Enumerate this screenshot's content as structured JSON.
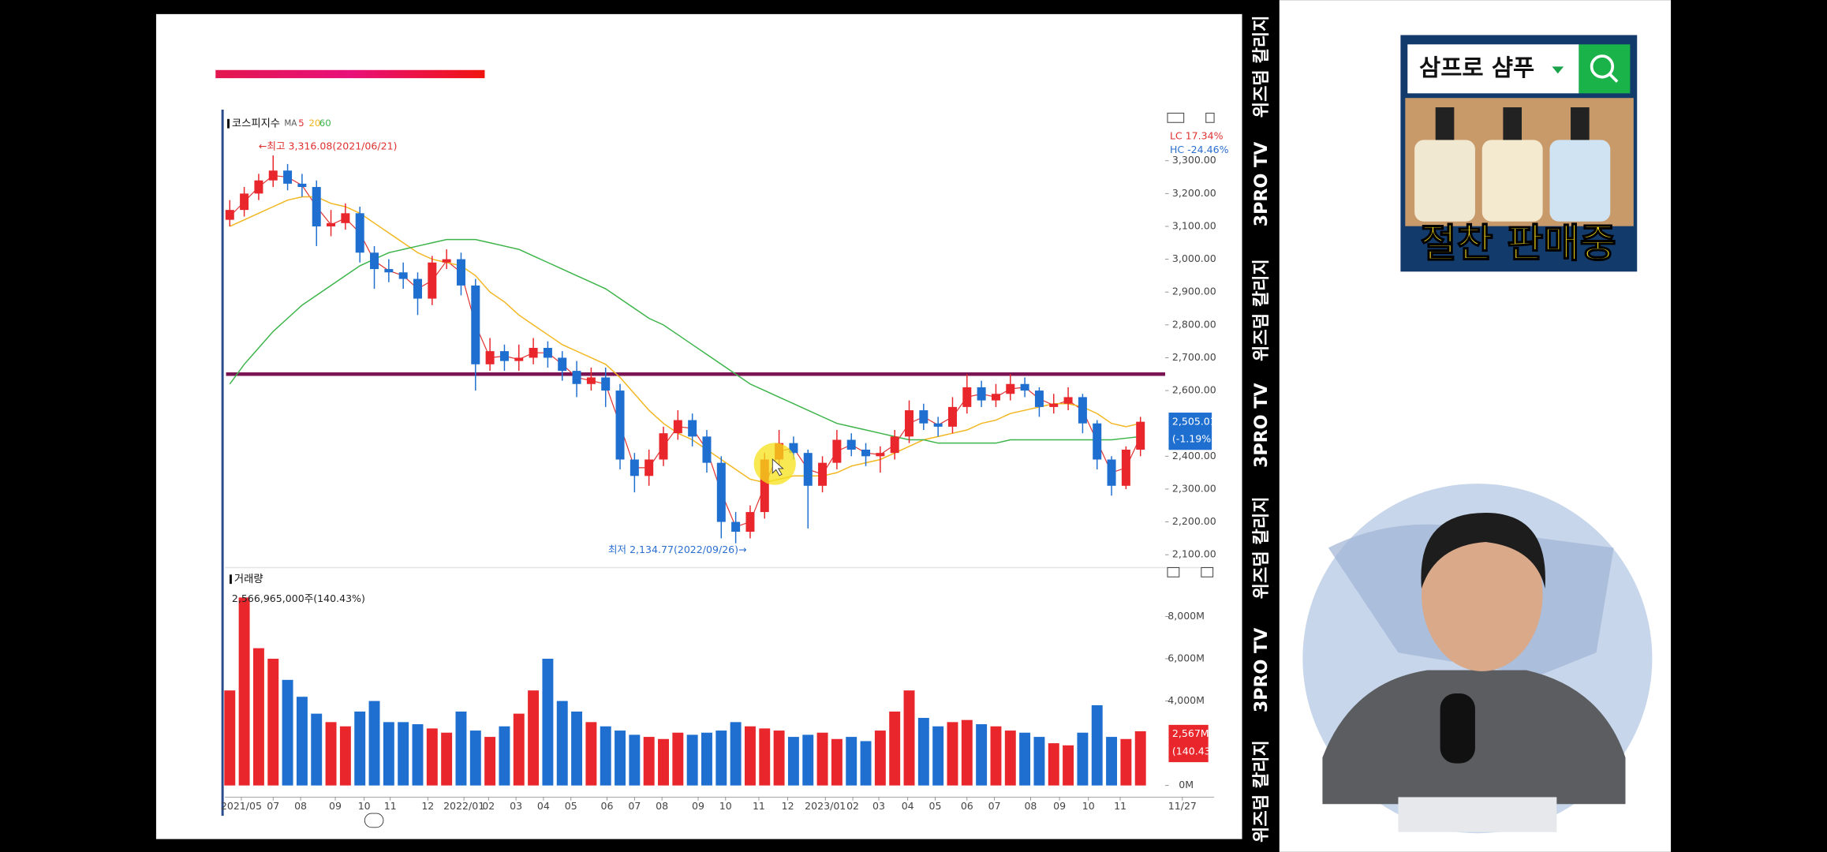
{
  "chart_data": {
    "type": "candlestick",
    "title": "코스피지수",
    "ma_label": "MA",
    "up_color": "#e8262b",
    "down_color": "#1e6fd0",
    "ohlc": [
      [
        3120,
        3180,
        3100,
        3150
      ],
      [
        3150,
        3220,
        3130,
        3200
      ],
      [
        3200,
        3260,
        3180,
        3240
      ],
      [
        3240,
        3316.08,
        3220,
        3270
      ],
      [
        3270,
        3290,
        3210,
        3230
      ],
      [
        3230,
        3260,
        3190,
        3220
      ],
      [
        3220,
        3240,
        3040,
        3100
      ],
      [
        3100,
        3150,
        3070,
        3110
      ],
      [
        3110,
        3170,
        3090,
        3140
      ],
      [
        3140,
        3160,
        2990,
        3020
      ],
      [
        3020,
        3040,
        2910,
        2970
      ],
      [
        2970,
        3000,
        2930,
        2960
      ],
      [
        2960,
        2990,
        2910,
        2940
      ],
      [
        2940,
        2960,
        2830,
        2880
      ],
      [
        2880,
        3010,
        2860,
        2990
      ],
      [
        2990,
        3030,
        2970,
        3000
      ],
      [
        3000,
        3020,
        2890,
        2920
      ],
      [
        2920,
        2940,
        2600,
        2680
      ],
      [
        2680,
        2760,
        2660,
        2720
      ],
      [
        2720,
        2740,
        2660,
        2690
      ],
      [
        2690,
        2740,
        2660,
        2700
      ],
      [
        2700,
        2760,
        2680,
        2730
      ],
      [
        2730,
        2750,
        2670,
        2700
      ],
      [
        2700,
        2720,
        2630,
        2660
      ],
      [
        2660,
        2690,
        2580,
        2620
      ],
      [
        2620,
        2670,
        2600,
        2640
      ],
      [
        2640,
        2670,
        2550,
        2600
      ],
      [
        2600,
        2620,
        2360,
        2390
      ],
      [
        2390,
        2410,
        2290,
        2340
      ],
      [
        2340,
        2420,
        2310,
        2390
      ],
      [
        2390,
        2490,
        2370,
        2470
      ],
      [
        2470,
        2540,
        2450,
        2510
      ],
      [
        2510,
        2530,
        2430,
        2460
      ],
      [
        2460,
        2480,
        2350,
        2380
      ],
      [
        2380,
        2400,
        2150,
        2200
      ],
      [
        2200,
        2230,
        2134.77,
        2170
      ],
      [
        2170,
        2250,
        2150,
        2230
      ],
      [
        2230,
        2410,
        2210,
        2390
      ],
      [
        2390,
        2480,
        2370,
        2440
      ],
      [
        2440,
        2460,
        2390,
        2410
      ],
      [
        2410,
        2420,
        2180,
        2310
      ],
      [
        2310,
        2400,
        2290,
        2380
      ],
      [
        2380,
        2480,
        2360,
        2450
      ],
      [
        2450,
        2470,
        2400,
        2420
      ],
      [
        2420,
        2440,
        2370,
        2400
      ],
      [
        2400,
        2430,
        2350,
        2410
      ],
      [
        2410,
        2480,
        2390,
        2460
      ],
      [
        2460,
        2570,
        2440,
        2540
      ],
      [
        2540,
        2560,
        2480,
        2500
      ],
      [
        2500,
        2520,
        2460,
        2490
      ],
      [
        2490,
        2580,
        2470,
        2550
      ],
      [
        2550,
        2650,
        2530,
        2610
      ],
      [
        2610,
        2630,
        2550,
        2570
      ],
      [
        2570,
        2620,
        2550,
        2590
      ],
      [
        2590,
        2650,
        2570,
        2620
      ],
      [
        2620,
        2640,
        2580,
        2600
      ],
      [
        2600,
        2610,
        2520,
        2550
      ],
      [
        2550,
        2590,
        2530,
        2560
      ],
      [
        2560,
        2610,
        2540,
        2580
      ],
      [
        2580,
        2590,
        2470,
        2500
      ],
      [
        2500,
        2510,
        2360,
        2390
      ],
      [
        2390,
        2400,
        2280,
        2310
      ],
      [
        2310,
        2430,
        2300,
        2420
      ],
      [
        2420,
        2520,
        2400,
        2505.01
      ]
    ],
    "series": [
      {
        "name": "5",
        "color": "#e03030",
        "values": [
          3130,
          3175,
          3220,
          3255,
          3250,
          3225,
          3160,
          3105,
          3125,
          3080,
          2995,
          2965,
          2950,
          2910,
          2935,
          2995,
          2960,
          2800,
          2700,
          2705,
          2695,
          2715,
          2715,
          2680,
          2640,
          2630,
          2620,
          2495,
          2365,
          2365,
          2430,
          2490,
          2485,
          2420,
          2290,
          2185,
          2200,
          2310,
          2415,
          2425,
          2360,
          2345,
          2415,
          2435,
          2410,
          2405,
          2435,
          2500,
          2520,
          2495,
          2520,
          2580,
          2590,
          2580,
          2605,
          2610,
          2575,
          2555,
          2570,
          2540,
          2445,
          2350,
          2365,
          2460
        ]
      },
      {
        "name": "20",
        "color": "#f2b620",
        "values": [
          3100,
          3120,
          3140,
          3160,
          3180,
          3190,
          3190,
          3170,
          3160,
          3140,
          3110,
          3080,
          3050,
          3020,
          3000,
          2990,
          2980,
          2950,
          2900,
          2870,
          2830,
          2800,
          2770,
          2740,
          2720,
          2700,
          2680,
          2640,
          2590,
          2540,
          2500,
          2470,
          2450,
          2420,
          2390,
          2360,
          2330,
          2320,
          2330,
          2340,
          2340,
          2340,
          2350,
          2370,
          2380,
          2390,
          2410,
          2430,
          2450,
          2460,
          2470,
          2480,
          2500,
          2510,
          2530,
          2540,
          2550,
          2560,
          2560,
          2550,
          2530,
          2500,
          2490,
          2500
        ]
      },
      {
        "name": "60",
        "color": "#3cb44a",
        "values": [
          2620,
          2680,
          2730,
          2780,
          2820,
          2860,
          2890,
          2920,
          2950,
          2980,
          3000,
          3020,
          3030,
          3040,
          3050,
          3060,
          3060,
          3060,
          3050,
          3040,
          3030,
          3010,
          2990,
          2970,
          2950,
          2930,
          2910,
          2880,
          2850,
          2820,
          2800,
          2770,
          2740,
          2710,
          2680,
          2650,
          2620,
          2600,
          2580,
          2560,
          2540,
          2520,
          2500,
          2490,
          2480,
          2470,
          2460,
          2450,
          2450,
          2440,
          2440,
          2440,
          2440,
          2440,
          2450,
          2450,
          2450,
          2450,
          2450,
          2450,
          2450,
          2450,
          2455,
          2460
        ]
      }
    ],
    "hline": 2650,
    "hline_color": "#7a1452",
    "ylim": [
      2068,
      3452
    ],
    "yticks": [
      {
        "value": 2100,
        "label": "2,100.00"
      },
      {
        "value": 2200,
        "label": "2,200.00"
      },
      {
        "value": 2300,
        "label": "2,300.00"
      },
      {
        "value": 2400,
        "label": "2,400.00"
      },
      {
        "value": 2600,
        "label": "2,600.00"
      },
      {
        "value": 2700,
        "label": "2,700.00"
      },
      {
        "value": 2800,
        "label": "2,800.00"
      },
      {
        "value": 2900,
        "label": "2,900.00"
      },
      {
        "value": 3000,
        "label": "3,000.00"
      },
      {
        "value": 3100,
        "label": "3,100.00"
      },
      {
        "value": 3200,
        "label": "3,200.00"
      },
      {
        "value": 3300,
        "label": "3,300.00"
      }
    ],
    "xlim": [
      -0.5,
      66
    ],
    "xticks": [
      {
        "value": 0.8,
        "label": "2021/05"
      },
      {
        "value": 3.0,
        "label": "07"
      },
      {
        "value": 4.9,
        "label": "08"
      },
      {
        "value": 7.3,
        "label": "09"
      },
      {
        "value": 9.3,
        "label": "10"
      },
      {
        "value": 11.1,
        "label": "11"
      },
      {
        "value": 13.7,
        "label": "12"
      },
      {
        "value": 16.2,
        "label": "2022/01"
      },
      {
        "value": 17.9,
        "label": "02"
      },
      {
        "value": 19.8,
        "label": "03"
      },
      {
        "value": 21.7,
        "label": "04"
      },
      {
        "value": 23.6,
        "label": "05"
      },
      {
        "value": 26.1,
        "label": "06"
      },
      {
        "value": 28.0,
        "label": "07"
      },
      {
        "value": 29.9,
        "label": "08"
      },
      {
        "value": 32.4,
        "label": "09"
      },
      {
        "value": 34.3,
        "label": "10"
      },
      {
        "value": 36.6,
        "label": "11"
      },
      {
        "value": 38.6,
        "label": "12"
      },
      {
        "value": 41.2,
        "label": "2023/01"
      },
      {
        "value": 43.1,
        "label": "02"
      },
      {
        "value": 44.9,
        "label": "03"
      },
      {
        "value": 46.9,
        "label": "04"
      },
      {
        "value": 48.8,
        "label": "05"
      },
      {
        "value": 51.0,
        "label": "06"
      },
      {
        "value": 52.9,
        "label": "07"
      },
      {
        "value": 55.4,
        "label": "08"
      },
      {
        "value": 57.4,
        "label": "09"
      },
      {
        "value": 59.4,
        "label": "10"
      },
      {
        "value": 61.6,
        "label": "11"
      },
      {
        "value": 65.9,
        "label": "11/27"
      }
    ],
    "annotations": {
      "high": "←최고 3,316.08(2021/06/21)",
      "low": "최저 2,134.77(2022/09/26)→",
      "lc": "LC 17.34%",
      "hc": "HC -24.46%",
      "last_price": "2,505.01",
      "last_change": "(-1.19%)"
    },
    "volume": {
      "title": "거래량",
      "summary": "2,566,965,000주(140.43%)",
      "values": [
        4500,
        8900,
        6500,
        6000,
        5000,
        4200,
        3400,
        3000,
        2800,
        3500,
        4000,
        3000,
        3000,
        2900,
        2700,
        2500,
        3500,
        2600,
        2300,
        2800,
        3400,
        4500,
        6000,
        4000,
        3500,
        3000,
        2800,
        2600,
        2400,
        2300,
        2200,
        2500,
        2400,
        2500,
        2600,
        3000,
        2800,
        2700,
        2600,
        2300,
        2400,
        2500,
        2200,
        2300,
        2100,
        2600,
        3500,
        4500,
        3200,
        2800,
        3000,
        3100,
        2900,
        2800,
        2600,
        2500,
        2300,
        2000,
        1900,
        2500,
        3800,
        2300,
        2200,
        2567
      ],
      "ylim": [
        0,
        9600
      ],
      "yticks": [
        {
          "value": 0,
          "label": "0M"
        },
        {
          "value": 4000,
          "label": "4,000M"
        },
        {
          "value": 6000,
          "label": "6,000M"
        },
        {
          "value": 8000,
          "label": "8,000M"
        }
      ],
      "last_label": "2,567M",
      "last_change": "(140.43%)"
    }
  },
  "overlay": {
    "channel": [
      "위즈덤 칼리지",
      "3PRO TV",
      "위즈덤 칼리지",
      "3PRO TV",
      "위즈덤 칼리지",
      "3PRO TV",
      "위즈덤 칼리지"
    ],
    "ad": {
      "search": "삼프로 샴푸",
      "banner": "절찬 판매중"
    }
  }
}
